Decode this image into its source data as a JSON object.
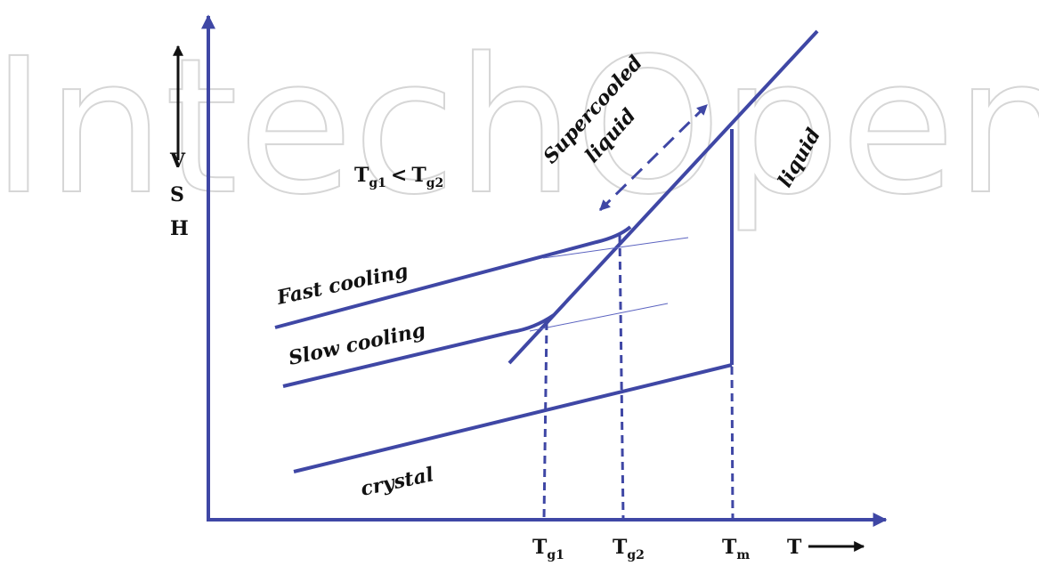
{
  "watermark": "IntechOpen",
  "colors": {
    "line": "#3f47a5",
    "text": "#111111",
    "thin": "#5b63c0",
    "watermark": "#d6d6d6"
  },
  "y_axis": {
    "label_lines": [
      "V",
      "S",
      "H"
    ]
  },
  "x_axis": {
    "label": "T"
  },
  "relation": {
    "t1": "T",
    "t1_sub": "g1",
    "op": "<",
    "t2": "T",
    "t2_sub": "g2"
  },
  "labels": {
    "fast": "Fast cooling",
    "slow": "Slow cooling",
    "crystal": "crystal",
    "liquid": "liquid",
    "super1": "Supercooled",
    "super2": "liquid"
  },
  "ticks": {
    "tg1_main": "T",
    "tg1_sub": "g1",
    "tg2_main": "T",
    "tg2_sub": "g2",
    "tm_main": "T",
    "tm_sub": "m"
  }
}
